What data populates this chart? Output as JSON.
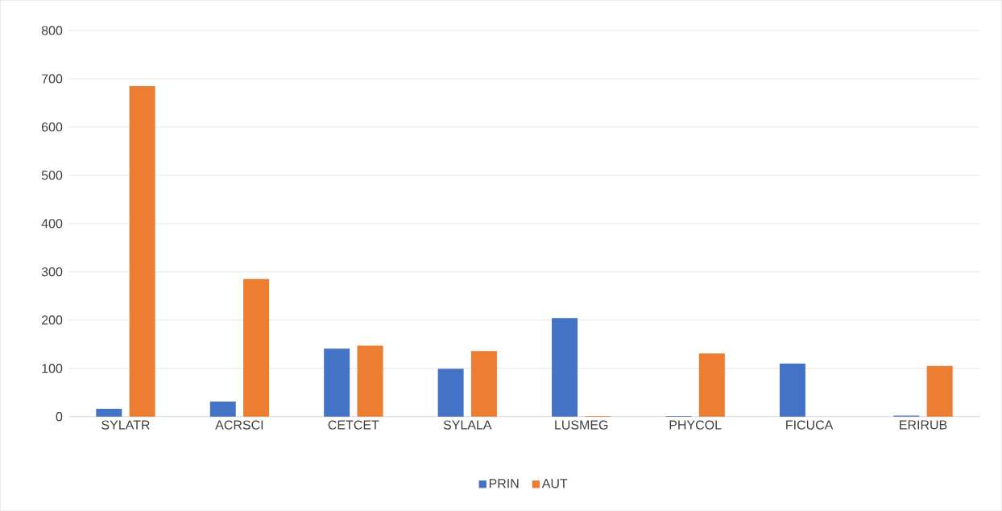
{
  "chart_data": {
    "type": "bar",
    "categories": [
      "SYLATR",
      "ACRSCI",
      "CETCET",
      "SYLALA",
      "LUSMEG",
      "PHYCOL",
      "FICUCA",
      "ERIRUB"
    ],
    "series": [
      {
        "name": "PRIN",
        "color": "#4472c4",
        "values": [
          16,
          31,
          141,
          99,
          204,
          1,
          110,
          2
        ]
      },
      {
        "name": "AUT",
        "color": "#ed7d31",
        "values": [
          685,
          285,
          147,
          136,
          1,
          131,
          0,
          105
        ]
      }
    ],
    "ylim": [
      0,
      800
    ],
    "yticks": [
      0,
      100,
      200,
      300,
      400,
      500,
      600,
      700,
      800
    ],
    "grid": "y",
    "legend": "bottom"
  }
}
